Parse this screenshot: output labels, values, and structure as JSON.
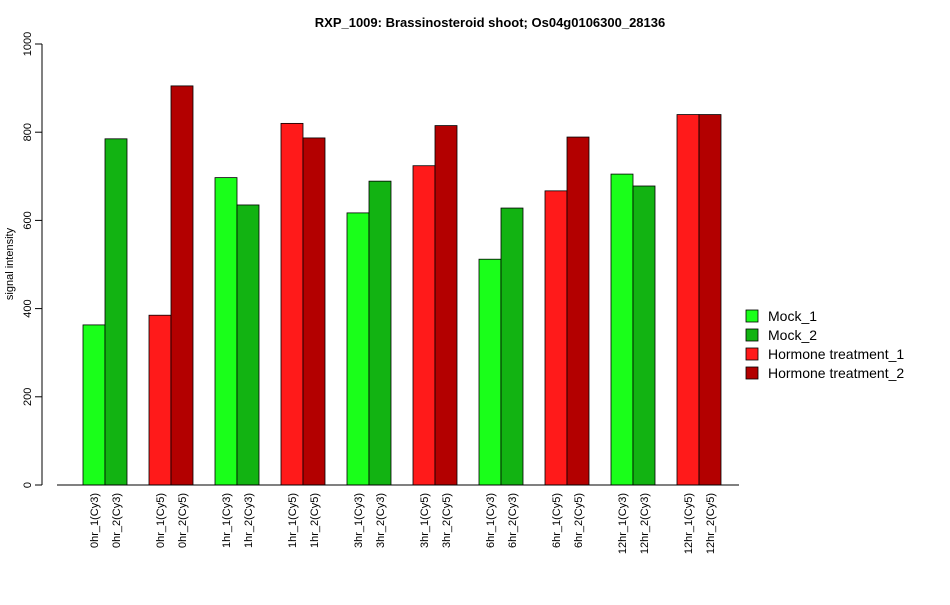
{
  "chart_data": {
    "type": "bar",
    "title": "RXP_1009: Brassinosteroid shoot; Os04g0106300_28136",
    "xlabel": "",
    "ylabel": "signal intensity",
    "ylim": [
      0,
      1000
    ],
    "yticks": [
      0,
      200,
      400,
      600,
      800,
      1000
    ],
    "grid": false,
    "legend_position": "right",
    "categories": [
      "0hr_1(Cy3)",
      "0hr_2(Cy3)",
      "0hr_1(Cy5)",
      "0hr_2(Cy5)",
      "1hr_1(Cy3)",
      "1hr_2(Cy3)",
      "1hr_1(Cy5)",
      "1hr_2(Cy5)",
      "3hr_1(Cy3)",
      "3hr_2(Cy3)",
      "3hr_1(Cy5)",
      "3hr_2(Cy5)",
      "6hr_1(Cy3)",
      "6hr_2(Cy3)",
      "6hr_1(Cy5)",
      "6hr_2(Cy5)",
      "12hr_1(Cy3)",
      "12hr_2(Cy3)",
      "12hr_1(Cy5)",
      "12hr_2(Cy5)"
    ],
    "values": [
      363,
      785,
      385,
      905,
      697,
      635,
      820,
      787,
      617,
      689,
      724,
      815,
      512,
      628,
      667,
      789,
      705,
      678,
      840,
      840
    ],
    "bar_series_index": [
      0,
      1,
      2,
      3,
      0,
      1,
      2,
      3,
      0,
      1,
      2,
      3,
      0,
      1,
      2,
      3,
      0,
      1,
      2,
      3
    ],
    "series": [
      {
        "name": "Mock_1",
        "color": "#1AFF1A"
      },
      {
        "name": "Mock_2",
        "color": "#12B312"
      },
      {
        "name": "Hormone treatment_1",
        "color": "#FF1A1A"
      },
      {
        "name": "Hormone treatment_2",
        "color": "#B30000"
      }
    ]
  }
}
